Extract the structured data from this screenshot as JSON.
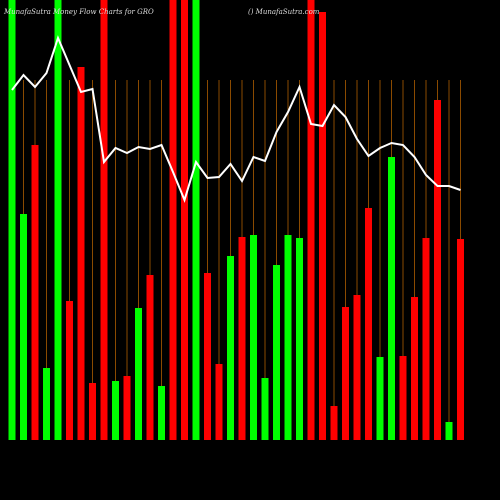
{
  "chart_data": {
    "type": "bar",
    "title": "MunafaSutra  Money Flow  Charts for GRO",
    "subtitle": "() MunafaSutra.com",
    "categories": [
      null,
      null,
      null,
      null,
      null,
      null,
      null,
      null,
      null,
      null,
      null,
      null,
      null,
      null,
      null,
      null,
      null,
      null,
      null,
      null,
      null,
      null,
      null,
      null,
      null,
      null,
      null,
      null,
      null,
      null,
      null,
      null,
      null,
      null,
      null,
      null,
      null,
      null,
      null,
      null
    ],
    "values": [
      440,
      226,
      295,
      72,
      440,
      139,
      373,
      57,
      440,
      59,
      64,
      132,
      165,
      54,
      440,
      440,
      440,
      167,
      76,
      184,
      203,
      205,
      62,
      175,
      205,
      202,
      440,
      428,
      34,
      133,
      145,
      232,
      83,
      283,
      84,
      143,
      202,
      340,
      18,
      201
    ],
    "colors": [
      "#00ff00",
      "#00ff00",
      "#ff0000",
      "#00ff00",
      "#00ff00",
      "#ff0000",
      "#ff0000",
      "#ff0000",
      "#ff0000",
      "#00ff00",
      "#ff0000",
      "#00ff00",
      "#ff0000",
      "#00ff00",
      "#ff0000",
      "#ff0000",
      "#00ff00",
      "#ff0000",
      "#ff0000",
      "#00ff00",
      "#ff0000",
      "#00ff00",
      "#00ff00",
      "#00ff00",
      "#00ff00",
      "#00ff00",
      "#ff0000",
      "#ff0000",
      "#ff0000",
      "#ff0000",
      "#ff0000",
      "#ff0000",
      "#00ff00",
      "#00ff00",
      "#ff0000",
      "#ff0000",
      "#ff0000",
      "#ff0000",
      "#00ff00",
      "#ff0000"
    ],
    "line_values": [
      350,
      365,
      353,
      367,
      402,
      375,
      348,
      351,
      278,
      292,
      287,
      293,
      291,
      295,
      268,
      240,
      278,
      262,
      263,
      276,
      259,
      283,
      279,
      308,
      328,
      353,
      316,
      314,
      335,
      323,
      301,
      284,
      292,
      297,
      295,
      283,
      265,
      254,
      254,
      250
    ],
    "line_color": "#ffffff",
    "ylim": [
      0,
      440
    ]
  }
}
